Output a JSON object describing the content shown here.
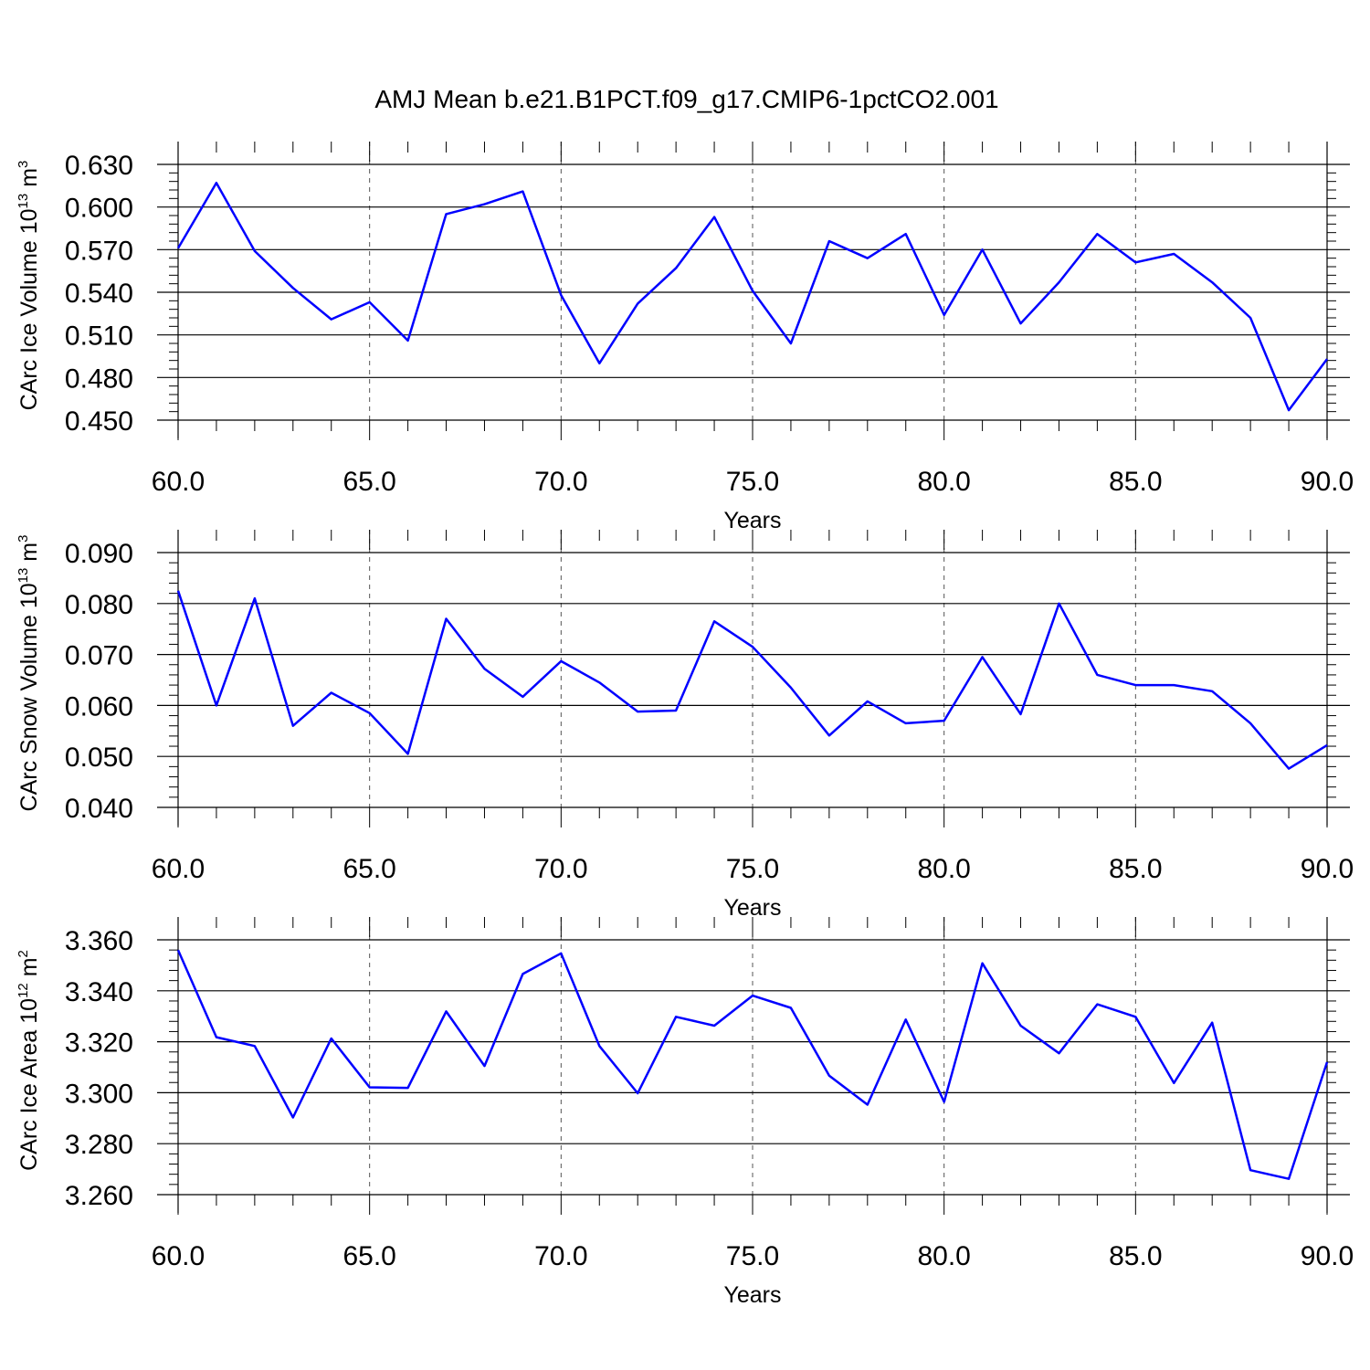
{
  "title": "AMJ Mean b.e21.B1PCT.f09_g17.CMIP6-1pctCO2.001",
  "colors": {
    "line": "#0000ff",
    "axis": "#000000",
    "grid": "#555555"
  },
  "chart_data": [
    {
      "type": "line",
      "ylabel": {
        "main": "CArc Ice Volume 10",
        "exp": "13",
        "unit": " m",
        "unit_exp": "3"
      },
      "xlabel": "Years",
      "xlim": [
        60,
        90
      ],
      "ylim": [
        0.45,
        0.63
      ],
      "xticks": [
        "60.0",
        "65.0",
        "70.0",
        "75.0",
        "80.0",
        "85.0",
        "90.0"
      ],
      "yticks": [
        "0.450",
        "0.480",
        "0.510",
        "0.540",
        "0.570",
        "0.600",
        "0.630"
      ],
      "grid": "vertical dashed at major x ticks",
      "x": [
        60,
        61,
        62,
        63,
        64,
        65,
        66,
        67,
        68,
        69,
        70,
        71,
        72,
        73,
        74,
        75,
        76,
        77,
        78,
        79,
        80,
        81,
        82,
        83,
        84,
        85,
        86,
        87,
        88,
        89,
        90
      ],
      "values": [
        0.571,
        0.617,
        0.569,
        0.543,
        0.521,
        0.533,
        0.506,
        0.595,
        0.602,
        0.611,
        0.538,
        0.49,
        0.532,
        0.557,
        0.593,
        0.541,
        0.504,
        0.576,
        0.564,
        0.581,
        0.524,
        0.57,
        0.518,
        0.547,
        0.581,
        0.561,
        0.567,
        0.547,
        0.522,
        0.457,
        0.493
      ]
    },
    {
      "type": "line",
      "ylabel": {
        "main": "CArc Snow Volume 10",
        "exp": "13",
        "unit": " m",
        "unit_exp": "3"
      },
      "xlabel": "Years",
      "xlim": [
        60,
        90
      ],
      "ylim": [
        0.04,
        0.09
      ],
      "xticks": [
        "60.0",
        "65.0",
        "70.0",
        "75.0",
        "80.0",
        "85.0",
        "90.0"
      ],
      "yticks": [
        "0.040",
        "0.050",
        "0.060",
        "0.070",
        "0.080",
        "0.090"
      ],
      "grid": "vertical dashed at major x ticks",
      "x": [
        60,
        61,
        62,
        63,
        64,
        65,
        66,
        67,
        68,
        69,
        70,
        71,
        72,
        73,
        74,
        75,
        76,
        77,
        78,
        79,
        80,
        81,
        82,
        83,
        84,
        85,
        86,
        87,
        88,
        89,
        90
      ],
      "values": [
        0.0825,
        0.06,
        0.081,
        0.056,
        0.0625,
        0.0585,
        0.0505,
        0.077,
        0.0672,
        0.0617,
        0.0687,
        0.0645,
        0.0588,
        0.059,
        0.0765,
        0.0715,
        0.0635,
        0.0541,
        0.0608,
        0.0565,
        0.057,
        0.0695,
        0.0583,
        0.08,
        0.066,
        0.064,
        0.064,
        0.0628,
        0.0565,
        0.0476,
        0.0522
      ]
    },
    {
      "type": "line",
      "ylabel": {
        "main": "CArc Ice Area 10",
        "exp": "12",
        "unit": " m",
        "unit_exp": "2"
      },
      "xlabel": "Years",
      "xlim": [
        60,
        90
      ],
      "ylim": [
        3.26,
        3.36
      ],
      "xticks": [
        "60.0",
        "65.0",
        "70.0",
        "75.0",
        "80.0",
        "85.0",
        "90.0"
      ],
      "yticks": [
        "3.260",
        "3.280",
        "3.300",
        "3.320",
        "3.340",
        "3.360"
      ],
      "grid": "vertical dashed at major x ticks",
      "x": [
        60,
        61,
        62,
        63,
        64,
        65,
        66,
        67,
        68,
        69,
        70,
        71,
        72,
        73,
        74,
        75,
        76,
        77,
        78,
        79,
        80,
        81,
        82,
        83,
        84,
        85,
        86,
        87,
        88,
        89,
        90
      ],
      "values": [
        3.356,
        3.3218,
        3.3183,
        3.2903,
        3.3213,
        3.3021,
        3.3019,
        3.3319,
        3.3105,
        3.3466,
        3.3547,
        3.3183,
        3.2998,
        3.3298,
        3.3263,
        3.3381,
        3.3333,
        3.3067,
        3.2953,
        3.3287,
        3.2964,
        3.3508,
        3.3263,
        3.3155,
        3.3347,
        3.3298,
        3.3038,
        3.3275,
        3.2696,
        3.2662,
        3.312
      ]
    }
  ]
}
